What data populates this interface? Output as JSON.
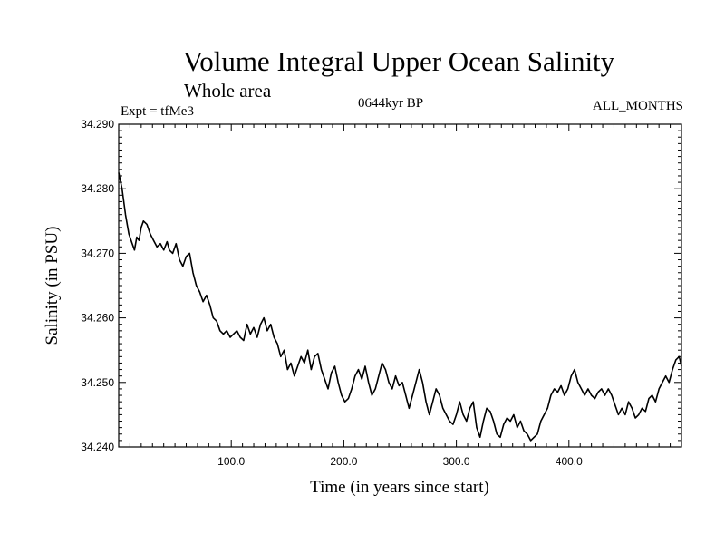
{
  "chart_data": {
    "type": "line",
    "title": "Volume Integral Upper Ocean Salinity",
    "subtitle": "Whole area",
    "annotations": {
      "experiment": "Expt = tfMe3",
      "period": "0644kyr BP",
      "months": "ALL_MONTHS"
    },
    "xlabel": "Time (in years since start)",
    "ylabel": "Salinity (in PSU)",
    "xlim": [
      0,
      500
    ],
    "ylim": [
      34.24,
      34.29
    ],
    "x_ticks": [
      100,
      200,
      300,
      400
    ],
    "x_tick_labels": [
      "100.0",
      "200.0",
      "300.0",
      "400.0"
    ],
    "y_ticks": [
      34.24,
      34.25,
      34.26,
      34.27,
      34.28,
      34.29
    ],
    "y_tick_labels": [
      "34.240",
      "34.250",
      "34.260",
      "34.270",
      "34.280",
      "34.290"
    ],
    "grid": false,
    "line_color": "#000000",
    "series": [
      {
        "x": [
          0,
          3,
          6,
          9,
          12,
          14,
          16,
          18,
          20,
          22,
          25,
          28,
          31,
          34,
          37,
          40,
          43,
          45,
          48,
          51,
          54,
          57,
          60,
          63,
          66,
          69,
          72,
          75,
          78,
          81,
          84,
          87,
          90,
          93,
          96,
          99,
          102,
          105,
          108,
          111,
          114,
          117,
          120,
          123,
          126,
          129,
          132,
          135,
          138,
          141,
          144,
          147,
          150,
          153,
          156,
          159,
          162,
          165,
          168,
          171,
          174,
          177,
          180,
          183,
          186,
          189,
          192,
          195,
          198,
          201,
          204,
          207,
          210,
          213,
          216,
          219,
          222,
          225,
          228,
          231,
          234,
          237,
          240,
          243,
          246,
          249,
          252,
          255,
          258,
          261,
          264,
          267,
          270,
          273,
          276,
          279,
          282,
          285,
          288,
          291,
          294,
          297,
          300,
          303,
          306,
          309,
          312,
          315,
          318,
          321,
          324,
          327,
          330,
          333,
          336,
          339,
          342,
          345,
          348,
          351,
          354,
          357,
          360,
          363,
          366,
          369,
          372,
          375,
          378,
          381,
          384,
          387,
          390,
          393,
          396,
          399,
          402,
          405,
          408,
          411,
          414,
          417,
          420,
          423,
          426,
          429,
          432,
          435,
          438,
          441,
          444,
          447,
          450,
          453,
          456,
          459,
          462,
          465,
          468,
          471,
          474,
          477,
          480,
          483,
          486,
          489,
          492,
          495,
          498,
          500
        ],
        "y": [
          34.2825,
          34.28,
          34.276,
          34.273,
          34.2715,
          34.2705,
          34.2725,
          34.272,
          34.274,
          34.275,
          34.2745,
          34.273,
          34.272,
          34.271,
          34.2715,
          34.2705,
          34.2718,
          34.2705,
          34.27,
          34.2715,
          34.269,
          34.268,
          34.2695,
          34.27,
          34.267,
          34.265,
          34.264,
          34.2625,
          34.2635,
          34.262,
          34.26,
          34.2595,
          34.258,
          34.2575,
          34.258,
          34.257,
          34.2575,
          34.258,
          34.257,
          34.2565,
          34.259,
          34.2575,
          34.2585,
          34.257,
          34.259,
          34.26,
          34.258,
          34.259,
          34.257,
          34.256,
          34.254,
          34.255,
          34.252,
          34.253,
          34.251,
          34.2525,
          34.254,
          34.253,
          34.255,
          34.252,
          34.254,
          34.2545,
          34.252,
          34.2505,
          34.249,
          34.2515,
          34.2525,
          34.25,
          34.248,
          34.247,
          34.2475,
          34.249,
          34.251,
          34.252,
          34.2505,
          34.2525,
          34.25,
          34.248,
          34.249,
          34.251,
          34.253,
          34.252,
          34.25,
          34.249,
          34.251,
          34.2495,
          34.25,
          34.248,
          34.246,
          34.248,
          34.25,
          34.252,
          34.25,
          34.247,
          34.245,
          34.247,
          34.249,
          34.248,
          34.246,
          34.245,
          34.244,
          34.2435,
          34.245,
          34.247,
          34.245,
          34.244,
          34.246,
          34.247,
          34.243,
          34.2415,
          34.244,
          34.246,
          34.2455,
          34.244,
          34.242,
          34.2415,
          34.2435,
          34.2445,
          34.244,
          34.245,
          34.243,
          34.244,
          34.2425,
          34.242,
          34.241,
          34.2415,
          34.242,
          34.244,
          34.245,
          34.246,
          34.248,
          34.249,
          34.2485,
          34.2495,
          34.248,
          34.249,
          34.251,
          34.252,
          34.25,
          34.249,
          34.248,
          34.249,
          34.248,
          34.2475,
          34.2485,
          34.249,
          34.248,
          34.249,
          34.248,
          34.2465,
          34.245,
          34.246,
          34.245,
          34.247,
          34.246,
          34.2445,
          34.245,
          34.246,
          34.2455,
          34.2475,
          34.248,
          34.247,
          34.249,
          34.25,
          34.251,
          34.25,
          34.252,
          34.2535,
          34.254,
          34.2525
        ]
      }
    ]
  }
}
